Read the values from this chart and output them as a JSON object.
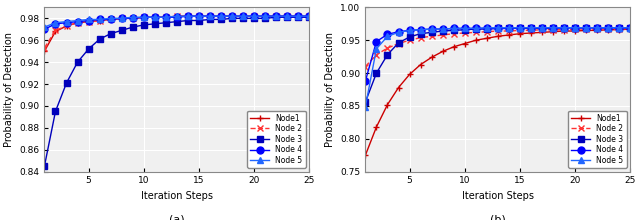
{
  "title_a": "(a)",
  "title_b": "(b)",
  "xlabel": "Iteration Steps",
  "ylabel": "Probability of Detection",
  "xlim_a": [
    1,
    25
  ],
  "xlim_b": [
    1,
    25
  ],
  "ylim_a": [
    0.84,
    0.99
  ],
  "ylim_b": [
    0.75,
    1.0
  ],
  "yticks_a": [
    0.84,
    0.86,
    0.88,
    0.9,
    0.92,
    0.94,
    0.96,
    0.98
  ],
  "yticks_b": [
    0.75,
    0.8,
    0.85,
    0.9,
    0.95,
    1.0
  ],
  "xticks": [
    5,
    10,
    15,
    20,
    25
  ],
  "legend_labels": [
    "Node1",
    "Node 2",
    "Node 3",
    "Node 4",
    "Node 5"
  ],
  "colors": [
    "#cc0000",
    "#ff3333",
    "#0000bb",
    "#0000ff",
    "#2266ff"
  ],
  "markers": [
    "+",
    "x",
    "s",
    "o",
    "^"
  ],
  "linestyles": [
    "-",
    "--",
    "-",
    "-",
    "-"
  ],
  "markersizes_a": [
    5,
    5,
    4,
    5,
    4
  ],
  "markersizes_b": [
    5,
    5,
    4,
    5,
    4
  ],
  "panel_a": {
    "nodes": [
      [
        0.95,
        0.968,
        0.973,
        0.976,
        0.977,
        0.978,
        0.979,
        0.98,
        0.98,
        0.981,
        0.981,
        0.981,
        0.982,
        0.982,
        0.982,
        0.982,
        0.982,
        0.982,
        0.982,
        0.982,
        0.982,
        0.982,
        0.982,
        0.982,
        0.982
      ],
      [
        0.953,
        0.969,
        0.973,
        0.976,
        0.977,
        0.978,
        0.979,
        0.98,
        0.98,
        0.981,
        0.981,
        0.981,
        0.982,
        0.982,
        0.982,
        0.982,
        0.982,
        0.982,
        0.982,
        0.982,
        0.982,
        0.982,
        0.982,
        0.982,
        0.982
      ],
      [
        0.845,
        0.895,
        0.921,
        0.94,
        0.952,
        0.961,
        0.966,
        0.969,
        0.972,
        0.974,
        0.975,
        0.976,
        0.977,
        0.978,
        0.978,
        0.979,
        0.979,
        0.98,
        0.98,
        0.98,
        0.98,
        0.981,
        0.981,
        0.981,
        0.981
      ],
      [
        0.97,
        0.975,
        0.976,
        0.977,
        0.978,
        0.979,
        0.979,
        0.98,
        0.98,
        0.981,
        0.981,
        0.981,
        0.981,
        0.982,
        0.982,
        0.982,
        0.982,
        0.982,
        0.982,
        0.982,
        0.982,
        0.982,
        0.982,
        0.982,
        0.982
      ],
      [
        0.972,
        0.976,
        0.977,
        0.978,
        0.979,
        0.979,
        0.98,
        0.98,
        0.981,
        0.981,
        0.981,
        0.981,
        0.982,
        0.982,
        0.982,
        0.982,
        0.982,
        0.982,
        0.982,
        0.982,
        0.982,
        0.982,
        0.982,
        0.982,
        0.982
      ]
    ]
  },
  "panel_b": {
    "nodes": [
      [
        0.775,
        0.818,
        0.852,
        0.878,
        0.898,
        0.913,
        0.924,
        0.933,
        0.94,
        0.945,
        0.95,
        0.953,
        0.956,
        0.958,
        0.96,
        0.961,
        0.962,
        0.963,
        0.964,
        0.964,
        0.965,
        0.965,
        0.966,
        0.966,
        0.967
      ],
      [
        0.91,
        0.928,
        0.938,
        0.945,
        0.95,
        0.954,
        0.956,
        0.958,
        0.96,
        0.961,
        0.962,
        0.963,
        0.964,
        0.964,
        0.965,
        0.965,
        0.966,
        0.966,
        0.966,
        0.967,
        0.967,
        0.967,
        0.967,
        0.967,
        0.968
      ],
      [
        0.856,
        0.9,
        0.928,
        0.946,
        0.955,
        0.96,
        0.962,
        0.964,
        0.965,
        0.966,
        0.967,
        0.967,
        0.968,
        0.968,
        0.968,
        0.968,
        0.968,
        0.968,
        0.969,
        0.969,
        0.969,
        0.969,
        0.969,
        0.969,
        0.969
      ],
      [
        0.888,
        0.948,
        0.959,
        0.963,
        0.965,
        0.966,
        0.967,
        0.967,
        0.968,
        0.968,
        0.968,
        0.968,
        0.968,
        0.968,
        0.969,
        0.969,
        0.969,
        0.969,
        0.969,
        0.969,
        0.969,
        0.969,
        0.969,
        0.969,
        0.969
      ],
      [
        0.849,
        0.937,
        0.956,
        0.962,
        0.965,
        0.966,
        0.967,
        0.967,
        0.968,
        0.968,
        0.968,
        0.969,
        0.969,
        0.969,
        0.969,
        0.969,
        0.969,
        0.969,
        0.969,
        0.969,
        0.969,
        0.969,
        0.969,
        0.969,
        0.969
      ]
    ]
  }
}
